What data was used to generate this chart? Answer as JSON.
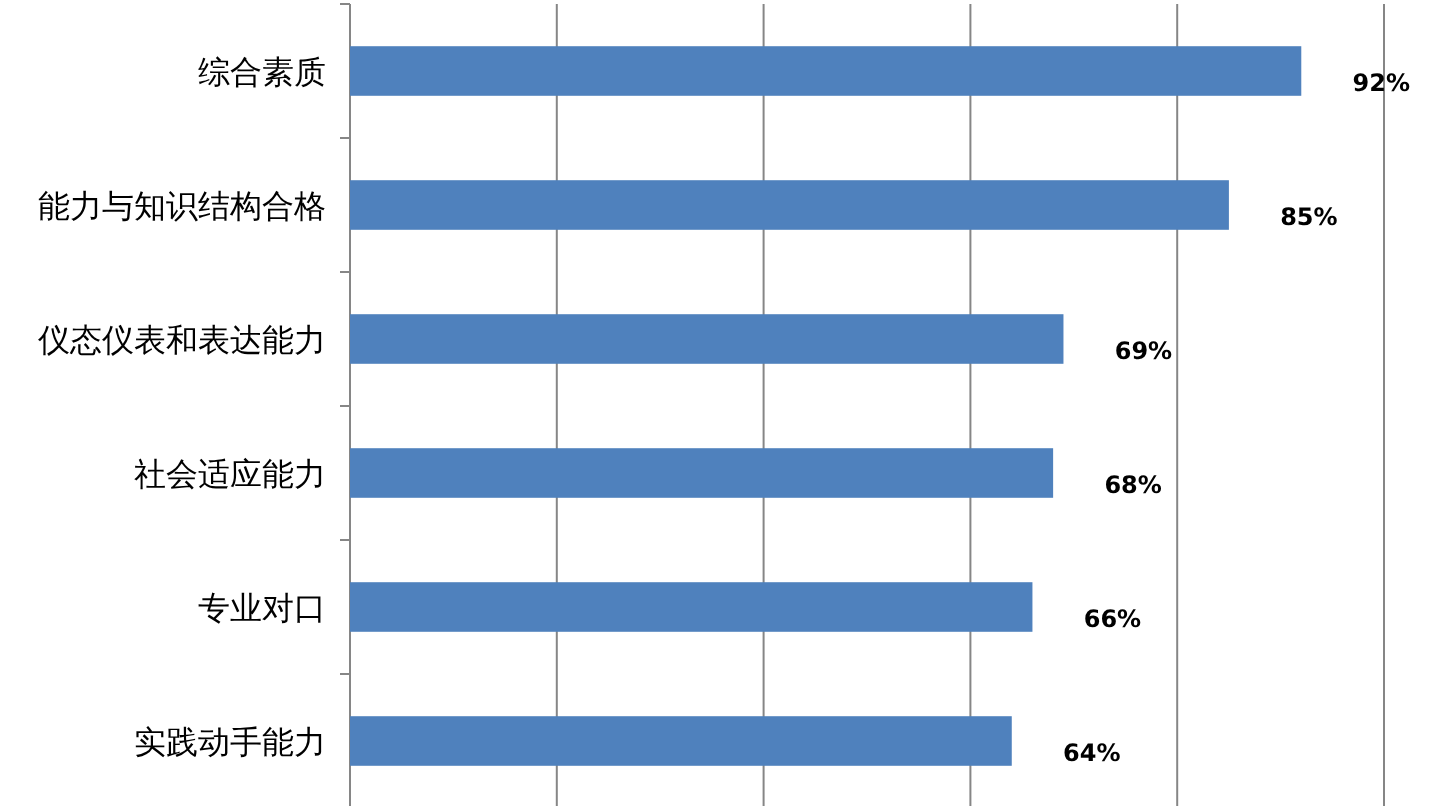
{
  "chart_data": {
    "type": "bar",
    "orientation": "horizontal",
    "categories": [
      "综合素质",
      "能力与知识结构合格",
      "仪态仪表和表达能力",
      "社会适应能力",
      "专业对口",
      "实践动手能力"
    ],
    "values": [
      92,
      85,
      69,
      68,
      66,
      64
    ],
    "value_labels": [
      "92%",
      "85%",
      "69%",
      "68%",
      "66%",
      "64%"
    ],
    "color": "#4f81bd",
    "xlim": [
      0,
      100
    ],
    "xticks": [
      {
        "value": 0,
        "label": null
      },
      {
        "value": 20,
        "label": null
      },
      {
        "value": 40,
        "label": null
      },
      {
        "value": 60,
        "label": null
      },
      {
        "value": 80,
        "label": null
      },
      {
        "value": 100,
        "label": null
      }
    ],
    "tick_labels": "y",
    "grid": "x"
  }
}
